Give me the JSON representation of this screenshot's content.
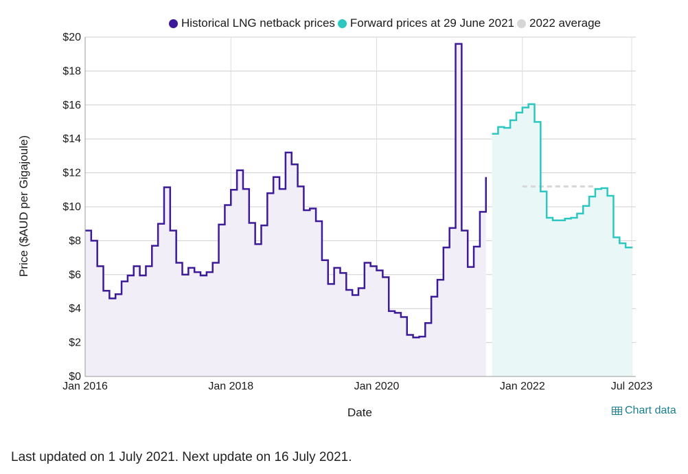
{
  "legend": {
    "historical": "Historical LNG netback prices",
    "forward": "Forward prices at 29 June 2021",
    "average": "2022 average"
  },
  "colors": {
    "historical": "#3d1a99",
    "forward": "#2cc7c0",
    "average": "#d6d6d6",
    "historical_fill": "#f1eef8",
    "forward_fill": "#e9f8f7"
  },
  "links": {
    "chart_data": "Chart data"
  },
  "footer": {
    "text": "Last updated on 1 July 2021. Next update on 16 July 2021."
  },
  "chart_data": {
    "type": "line",
    "title": "",
    "xlabel": "Date",
    "ylabel": "Price ($AUD per Gigajoule)",
    "ylim": [
      0,
      20
    ],
    "xlim": [
      "2016-01",
      "2023-07"
    ],
    "x_ticks": [
      {
        "label": "Jan 2016",
        "date": "2016-01"
      },
      {
        "label": "Jan 2018",
        "date": "2018-01"
      },
      {
        "label": "Jan 2020",
        "date": "2020-01"
      },
      {
        "label": "Jan 2022",
        "date": "2022-01"
      },
      {
        "label": "Jul 2023",
        "date": "2023-07"
      }
    ],
    "y_ticks": [
      "$0",
      "$2",
      "$4",
      "$6",
      "$8",
      "$10",
      "$12",
      "$14",
      "$16",
      "$18",
      "$20"
    ],
    "grid": true,
    "legend_position": "top",
    "series": [
      {
        "name": "Historical LNG netback prices",
        "step": true,
        "points": [
          [
            "2016-01",
            8.6
          ],
          [
            "2016-02",
            8.0
          ],
          [
            "2016-03",
            6.5
          ],
          [
            "2016-04",
            5.05
          ],
          [
            "2016-05",
            4.6
          ],
          [
            "2016-06",
            4.85
          ],
          [
            "2016-07",
            5.6
          ],
          [
            "2016-08",
            5.95
          ],
          [
            "2016-09",
            6.5
          ],
          [
            "2016-10",
            5.95
          ],
          [
            "2016-11",
            6.5
          ],
          [
            "2016-12",
            7.7
          ],
          [
            "2017-01",
            9.0
          ],
          [
            "2017-02",
            11.15
          ],
          [
            "2017-03",
            8.6
          ],
          [
            "2017-04",
            6.7
          ],
          [
            "2017-05",
            6.0
          ],
          [
            "2017-06",
            6.4
          ],
          [
            "2017-07",
            6.15
          ],
          [
            "2017-08",
            5.95
          ],
          [
            "2017-09",
            6.15
          ],
          [
            "2017-10",
            6.7
          ],
          [
            "2017-11",
            8.95
          ],
          [
            "2017-12",
            10.1
          ],
          [
            "2018-01",
            11.0
          ],
          [
            "2018-02",
            12.15
          ],
          [
            "2018-03",
            11.05
          ],
          [
            "2018-04",
            9.05
          ],
          [
            "2018-05",
            7.8
          ],
          [
            "2018-06",
            8.9
          ],
          [
            "2018-07",
            10.8
          ],
          [
            "2018-08",
            11.75
          ],
          [
            "2018-09",
            11.05
          ],
          [
            "2018-10",
            13.2
          ],
          [
            "2018-11",
            12.5
          ],
          [
            "2018-12",
            11.2
          ],
          [
            "2019-01",
            9.8
          ],
          [
            "2019-02",
            9.9
          ],
          [
            "2019-03",
            9.15
          ],
          [
            "2019-04",
            6.85
          ],
          [
            "2019-05",
            5.45
          ],
          [
            "2019-06",
            6.4
          ],
          [
            "2019-07",
            6.1
          ],
          [
            "2019-08",
            5.1
          ],
          [
            "2019-09",
            4.8
          ],
          [
            "2019-10",
            5.2
          ],
          [
            "2019-11",
            6.7
          ],
          [
            "2019-12",
            6.5
          ],
          [
            "2020-01",
            6.25
          ],
          [
            "2020-02",
            5.85
          ],
          [
            "2020-03",
            3.85
          ],
          [
            "2020-04",
            3.75
          ],
          [
            "2020-05",
            3.5
          ],
          [
            "2020-06",
            2.45
          ],
          [
            "2020-07",
            2.3
          ],
          [
            "2020-08",
            2.35
          ],
          [
            "2020-09",
            3.15
          ],
          [
            "2020-10",
            4.7
          ],
          [
            "2020-11",
            5.7
          ],
          [
            "2020-12",
            7.6
          ],
          [
            "2021-01",
            8.75
          ],
          [
            "2021-02",
            19.6
          ],
          [
            "2021-03",
            8.6
          ],
          [
            "2021-04",
            6.45
          ],
          [
            "2021-05",
            7.65
          ],
          [
            "2021-06",
            9.7
          ],
          [
            "2021-07",
            11.75
          ]
        ],
        "end": "2021-07"
      },
      {
        "name": "Forward prices at 29 June 2021",
        "step": true,
        "points": [
          [
            "2021-08",
            14.3
          ],
          [
            "2021-09",
            14.7
          ],
          [
            "2021-10",
            14.65
          ],
          [
            "2021-11",
            15.1
          ],
          [
            "2021-12",
            15.55
          ],
          [
            "2022-01",
            15.85
          ],
          [
            "2022-02",
            16.05
          ],
          [
            "2022-03",
            15.0
          ],
          [
            "2022-04",
            10.9
          ],
          [
            "2022-05",
            9.35
          ],
          [
            "2022-06",
            9.2
          ],
          [
            "2022-07",
            9.2
          ],
          [
            "2022-08",
            9.3
          ],
          [
            "2022-09",
            9.35
          ],
          [
            "2022-10",
            9.6
          ],
          [
            "2022-11",
            10.05
          ],
          [
            "2022-12",
            10.6
          ],
          [
            "2023-01",
            11.05
          ],
          [
            "2023-02",
            11.1
          ],
          [
            "2023-03",
            10.65
          ],
          [
            "2023-04",
            8.2
          ],
          [
            "2023-05",
            7.85
          ],
          [
            "2023-06",
            7.6
          ],
          [
            "2023-07",
            7.55
          ]
        ],
        "end": "2023-07"
      },
      {
        "name": "2022 average",
        "type": "dashed",
        "points": [
          [
            "2022-01",
            11.2
          ],
          [
            "2023-01",
            11.2
          ]
        ]
      }
    ]
  }
}
